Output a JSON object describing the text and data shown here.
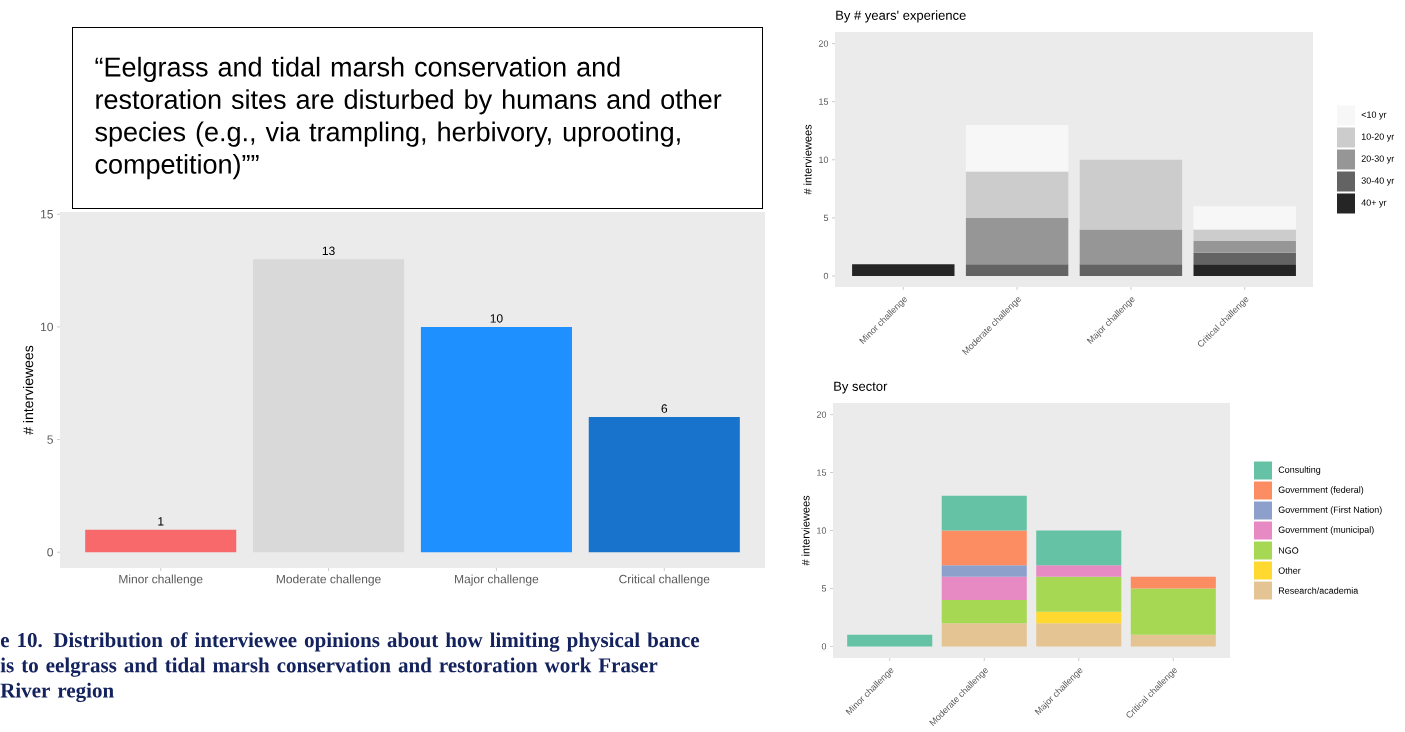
{
  "chart_data": [
    {
      "type": "bar",
      "categories": [
        "Minor challenge",
        "Moderate challenge",
        "Major challenge",
        "Critical challenge"
      ],
      "values": [
        1,
        13,
        10,
        6
      ],
      "colors": [
        "#f8696b",
        "#d9d9d9",
        "#1e90ff",
        "#1873cc"
      ],
      "ylabel": "# interviewees",
      "ylim": [
        -0.7,
        15.1
      ],
      "yticks": [
        0,
        5,
        10,
        15
      ],
      "data_labels": true,
      "annotations": [
        "“Eelgrass and tidal marsh conservation and restoration sites are disturbed by humans and other species (e.g., via trampling, herbivory, uprooting, competition)””",
        "e 10. Distribution of interviewee opinions about how limiting physical bance is to eelgrass and tidal marsh conservation and restoration work Fraser River region"
      ]
    },
    {
      "type": "bar",
      "title": "By # years' experience",
      "ylabel": "# interviewees",
      "categories": [
        "Minor challenge",
        "Moderate challenge",
        "Major challenge",
        "Critical challenge"
      ],
      "stacked": true,
      "legend": "right",
      "ylim": [
        -0.95,
        21
      ],
      "yticks": [
        0,
        5,
        10,
        15,
        20
      ],
      "series": [
        {
          "name": "40+ yr",
          "color": "#252525",
          "values": [
            1,
            null,
            null,
            1
          ]
        },
        {
          "name": "30-40 yr",
          "color": "#636363",
          "values": [
            null,
            1,
            1,
            1
          ]
        },
        {
          "name": "20-30 yr",
          "color": "#969696",
          "values": [
            null,
            4,
            3,
            1
          ]
        },
        {
          "name": "10-20 yr",
          "color": "#cccccc",
          "values": [
            null,
            4,
            6,
            1
          ]
        },
        {
          "name": "<10 yr",
          "color": "#f7f7f7",
          "values": [
            null,
            4,
            null,
            2
          ]
        }
      ]
    },
    {
      "type": "bar",
      "title": "By sector",
      "ylabel": "# interviewees",
      "categories": [
        "Minor challenge",
        "Moderate challenge",
        "Major challenge",
        "Critical challenge"
      ],
      "stacked": true,
      "legend": "right",
      "ylim": [
        -1,
        21
      ],
      "yticks": [
        0,
        5,
        10,
        15,
        20
      ],
      "series": [
        {
          "name": "Research/academia",
          "color": "#e5c494",
          "values": [
            null,
            2,
            2,
            1
          ]
        },
        {
          "name": "Other",
          "color": "#ffd92f",
          "values": [
            null,
            null,
            1,
            null
          ]
        },
        {
          "name": "NGO",
          "color": "#a6d854",
          "values": [
            null,
            2,
            3,
            4
          ]
        },
        {
          "name": "Government (municipal)",
          "color": "#e78ac3",
          "values": [
            null,
            2,
            1,
            null
          ]
        },
        {
          "name": "Government (First Nation)",
          "color": "#8da0cb",
          "values": [
            null,
            1,
            null,
            null
          ]
        },
        {
          "name": "Government (federal)",
          "color": "#fc8d62",
          "values": [
            null,
            3,
            null,
            1
          ]
        },
        {
          "name": "Consulting",
          "color": "#66c2a5",
          "values": [
            1,
            3,
            3,
            null
          ]
        }
      ]
    }
  ]
}
